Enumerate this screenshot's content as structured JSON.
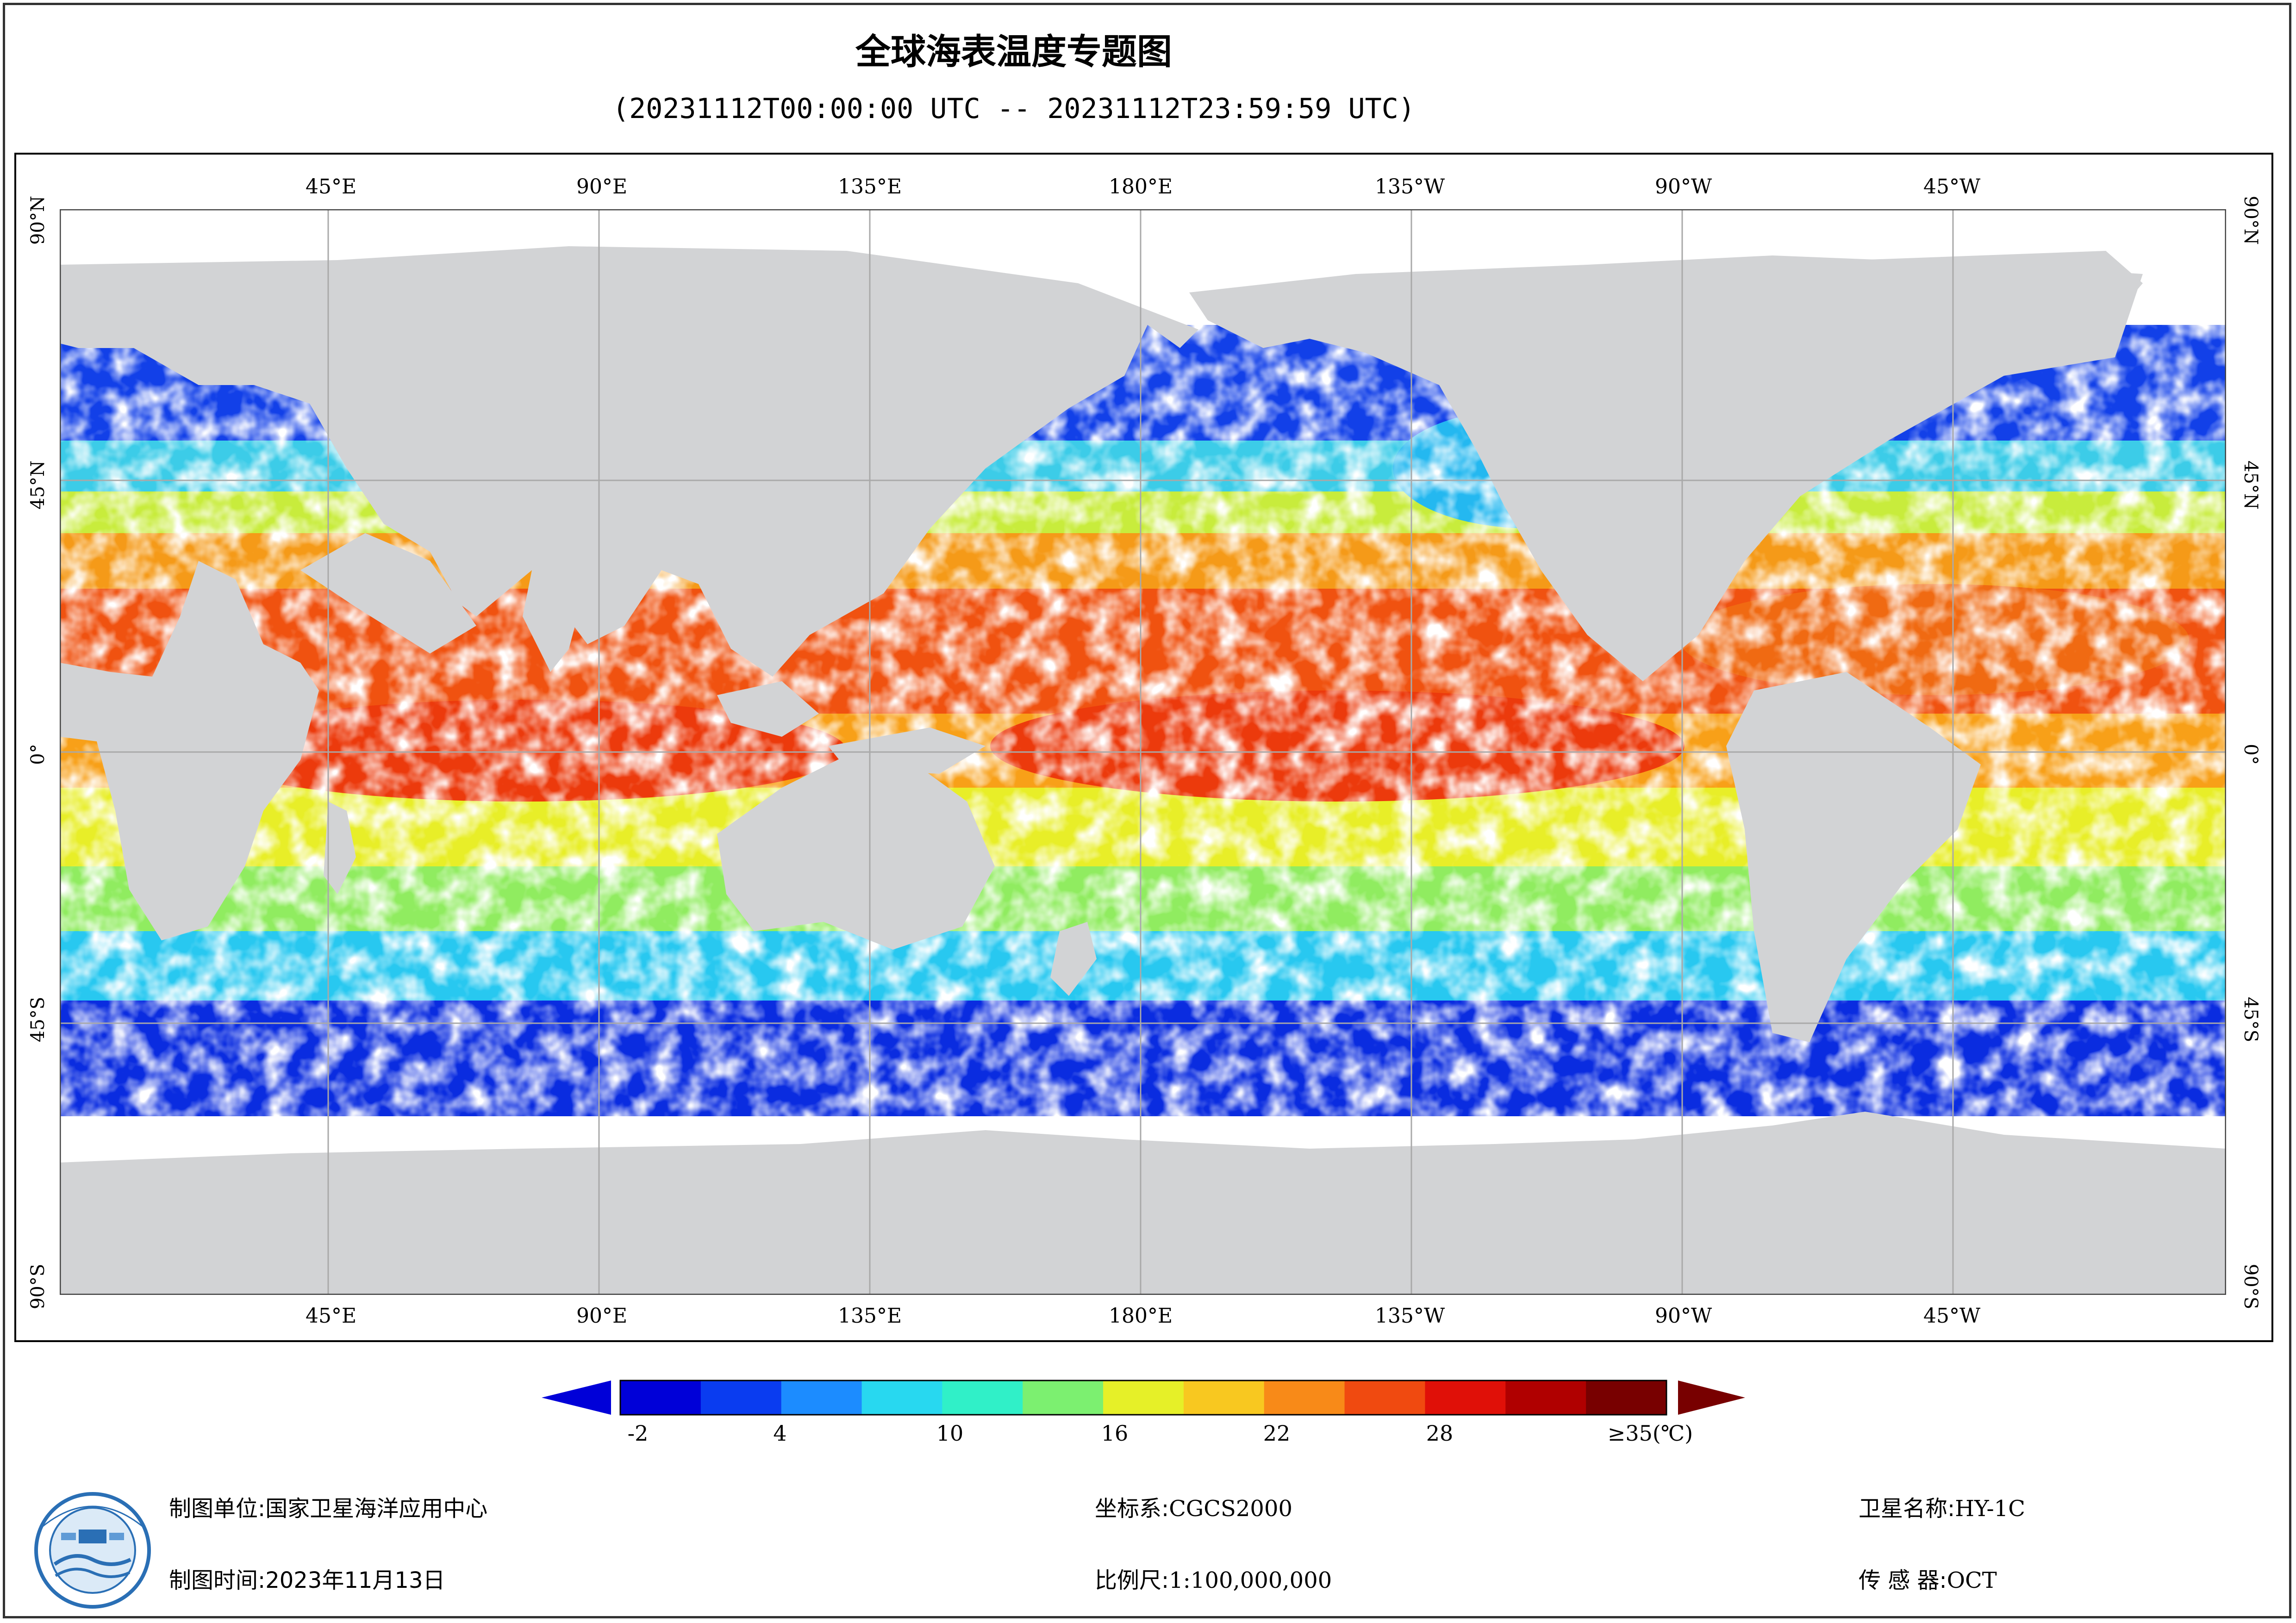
{
  "title": "全球海表温度专题图",
  "subtitle": "(20231112T00:00:00 UTC -- 20231112T23:59:59 UTC)",
  "map": {
    "lon_labels": [
      "45°E",
      "90°E",
      "135°E",
      "180°E",
      "135°W",
      "90°W",
      "45°W"
    ],
    "lat_labels": [
      "90°N",
      "45°N",
      "0°",
      "45°S",
      "90°S"
    ],
    "colors": {
      "land": "#d2d3d5",
      "missing": "#ffffff",
      "grid": "#a9a9a9"
    }
  },
  "legend": {
    "ticks": [
      "-2",
      "4",
      "10",
      "16",
      "22",
      "28",
      "≥35(℃)"
    ],
    "colors": [
      "#0000d8",
      "#0a3cf0",
      "#1c8cff",
      "#28d8f0",
      "#30f0c8",
      "#7cf070",
      "#e6f028",
      "#f8c820",
      "#f88a18",
      "#f04a10",
      "#e01008",
      "#b00000",
      "#780000"
    ]
  },
  "footer": {
    "org_label": "制图单位:",
    "org_value": "国家卫星海洋应用中心",
    "time_label": "制图时间:",
    "time_value": "2023年11月13日",
    "crs_label": "坐标系:",
    "crs_value": "CGCS2000",
    "scale_label": "比例尺:",
    "scale_value": "1:100,000,000",
    "sat_label": "卫星名称:",
    "sat_value": "HY-1C",
    "sensor_label": "传 感 器:",
    "sensor_value": "OCT"
  }
}
